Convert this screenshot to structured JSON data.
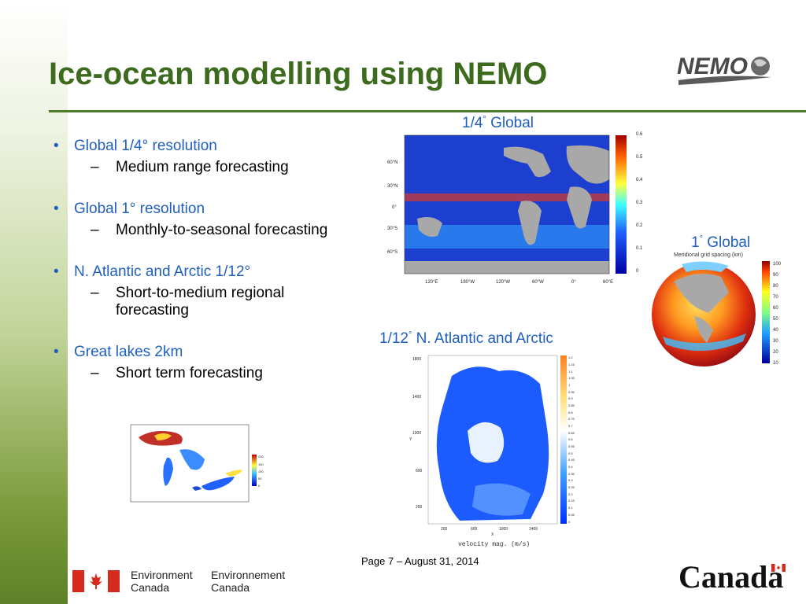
{
  "slide": {
    "title": "Ice-ocean modelling using NEMO",
    "logo_text": "NEMO",
    "bullets": [
      {
        "label": "Global 1/4° resolution",
        "sub": "Medium range forecasting"
      },
      {
        "label": "Global 1° resolution",
        "sub": "Monthly-to-seasonal forecasting"
      },
      {
        "label": "N. Atlantic and Arctic 1/12°",
        "sub_line1": "Short-to-medium regional",
        "sub_line2": "forecasting"
      },
      {
        "label": "Great lakes 2km",
        "sub": "Short term forecasting"
      }
    ],
    "bullet_glyph": "•",
    "dash_glyph": "–"
  },
  "figures": {
    "quarter_global": {
      "caption_a": "1/4",
      "caption_sup": "°",
      "caption_b": " Global",
      "lat_ticks": [
        "60°N",
        "30°N",
        "0°",
        "30°S",
        "60°S"
      ],
      "lon_ticks": [
        "120°E",
        "180°W",
        "120°W",
        "60°W",
        "0°",
        "60°E"
      ],
      "colorbar_ticks": [
        "0.6",
        "0.5",
        "0.4",
        "0.3",
        "0.2",
        "0.1",
        "0"
      ]
    },
    "one_global": {
      "caption_a": "1",
      "caption_sup": "°",
      "caption_b": " Global",
      "subtitle": "Meridional grid spacing (km)",
      "colorbar_ticks": [
        "100",
        "90",
        "80",
        "70",
        "60",
        "50",
        "40",
        "30",
        "20",
        "10"
      ]
    },
    "arctic": {
      "caption_a": "1/12",
      "caption_sup": "°",
      "caption_b": " N. Atlantic and Arctic",
      "y_ticks": [
        "1800",
        "1400",
        "1000",
        "600",
        "200"
      ],
      "x_ticks": [
        "200",
        "600",
        "1000",
        "1400"
      ],
      "y_label": "Y",
      "x_label": "X",
      "bottom_label": "velocity mag. (m/s)",
      "colorbar_ticks": [
        "1.2",
        "1.15",
        "1.1",
        "1.05",
        "1",
        "0.95",
        "0.9",
        "0.85",
        "0.8",
        "0.75",
        "0.7",
        "0.65",
        "0.6",
        "0.55",
        "0.5",
        "0.45",
        "0.4",
        "0.35",
        "0.3",
        "0.25",
        "0.2",
        "0.15",
        "0.1",
        "0.05",
        "0"
      ]
    },
    "great_lakes": {
      "colorbar_ticks": [
        "200",
        "150",
        "100",
        "50",
        "0"
      ]
    }
  },
  "footer": {
    "page": "Page 7 – August 31, 2014",
    "dept_en_1": "Environment",
    "dept_en_2": "Canada",
    "dept_fr_1": "Environnement",
    "dept_fr_2": "Canada",
    "wordmark": "Canada"
  },
  "colors": {
    "title": "#3d6b1e",
    "bullet": "#1f5fbf",
    "rule": "#4f7a2a",
    "flag_red": "#d52b1e"
  }
}
